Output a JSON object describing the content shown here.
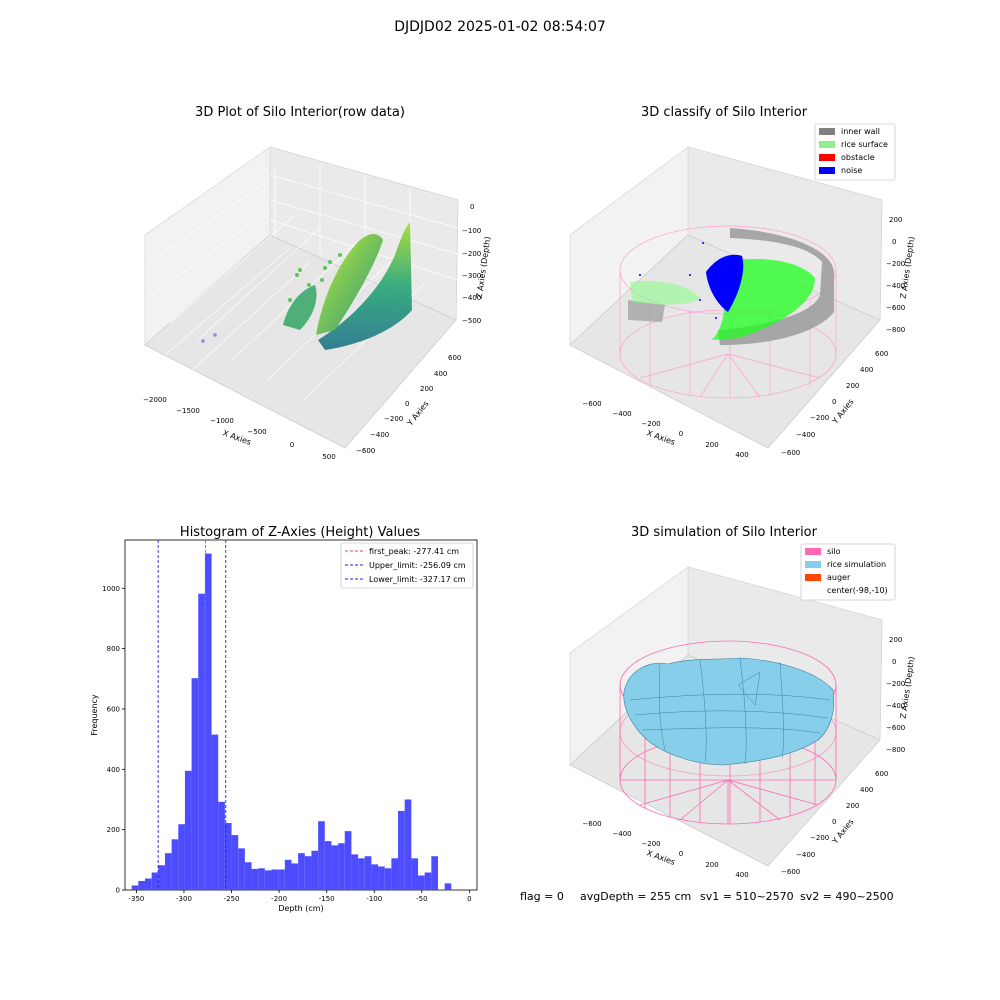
{
  "figure": {
    "suptitle": "DJDJD02 2025-01-02 08:54:07",
    "info_line": {
      "flag": "flag = 0",
      "avgDepth": "avgDepth = 255 cm",
      "sv1": "sv1 = 510~2570",
      "sv2": "sv2 = 490~2500"
    }
  },
  "colors": {
    "histogram_bar": "#4d4dff",
    "first_peak": "#e8453c",
    "limits": "#1f1fd6",
    "inner_wall": "#808080",
    "rice_surface": "#90ee90",
    "obstacle": "#ff0000",
    "noise": "#0000ff",
    "silo": "#ff69b4",
    "rice_simulation": "#87ceeb",
    "auger": "#ff4500"
  },
  "panel1": {
    "title": "3D Plot of Silo Interior(row data)",
    "xlabel": "X Axies",
    "ylabel": "Y Axies",
    "zlabel": "Z Axies (Depth)",
    "xticks": [
      "−2000",
      "−1500",
      "−1000",
      "−500",
      "0",
      "500"
    ],
    "yticks": [
      "600",
      "400",
      "200",
      "0",
      "−200",
      "−400",
      "−600"
    ],
    "zticks": [
      "0",
      "−100",
      "−200",
      "−300",
      "−400",
      "−500"
    ]
  },
  "panel2": {
    "title": "3D classify of Silo Interior",
    "xlabel": "X Axies",
    "ylabel": "Y Axies",
    "zlabel": "Z Axies (Depth)",
    "xticks": [
      "−600",
      "−400",
      "−200",
      "0",
      "200",
      "400"
    ],
    "yticks": [
      "600",
      "400",
      "200",
      "0",
      "−200",
      "−400",
      "−600"
    ],
    "zticks": [
      "200",
      "0",
      "−200",
      "−400",
      "−600",
      "−800"
    ],
    "legend": [
      {
        "label": "inner wall",
        "color": "#808080"
      },
      {
        "label": "rice surface",
        "color": "#90ee90"
      },
      {
        "label": "obstacle",
        "color": "#ff0000"
      },
      {
        "label": "noise",
        "color": "#0000ff"
      }
    ]
  },
  "panel4": {
    "title": "3D simulation of Silo Interior",
    "xlabel": "X Axies",
    "ylabel": "Y Axies",
    "zlabel": "Z Axies (Depth)",
    "xticks": [
      "−600",
      "−400",
      "−200",
      "0",
      "200",
      "400"
    ],
    "yticks": [
      "600",
      "400",
      "200",
      "0",
      "−200",
      "−400",
      "−600"
    ],
    "zticks": [
      "200",
      "0",
      "−200",
      "−400",
      "−600",
      "−800"
    ],
    "legend": [
      {
        "label": "silo",
        "color": "#ff69b4"
      },
      {
        "label": "rice simulation",
        "color": "#87ceeb"
      },
      {
        "label": "auger",
        "color": "#ff4500"
      },
      {
        "label": "center(-98,-10)",
        "color": ""
      }
    ]
  },
  "chart_data": {
    "type": "bar",
    "title": "Histogram of Z-Axies (Height) Values",
    "xlabel": "Depth (cm)",
    "ylabel": "Frequency",
    "xlim": [
      -362,
      8
    ],
    "ylim": [
      0,
      1160
    ],
    "xticks": [
      -350,
      -300,
      -250,
      -200,
      -150,
      -100,
      -50,
      0
    ],
    "yticks": [
      0,
      200,
      400,
      600,
      800,
      1000
    ],
    "bin_width": 7,
    "bin_start": -355,
    "values": [
      15,
      30,
      38,
      58,
      82,
      122,
      168,
      218,
      395,
      702,
      982,
      1115,
      515,
      292,
      222,
      182,
      138,
      92,
      70,
      72,
      65,
      68,
      68,
      100,
      88,
      122,
      112,
      130,
      228,
      162,
      148,
      155,
      195,
      118,
      105,
      112,
      85,
      78,
      72,
      105,
      262,
      300,
      105,
      48,
      58,
      112,
      2,
      22
    ],
    "vlines": [
      {
        "label": "first_peak: -277.41 cm",
        "x": -277.41,
        "color": "#e8453c"
      },
      {
        "label": "Upper_limit: -256.09 cm",
        "x": -256.09,
        "color": "#1f1fd6"
      },
      {
        "label": "Lower_limit: -327.17 cm",
        "x": -327.17,
        "color": "#1f1fd6"
      }
    ],
    "grid": false,
    "legend_position": "top-right"
  }
}
